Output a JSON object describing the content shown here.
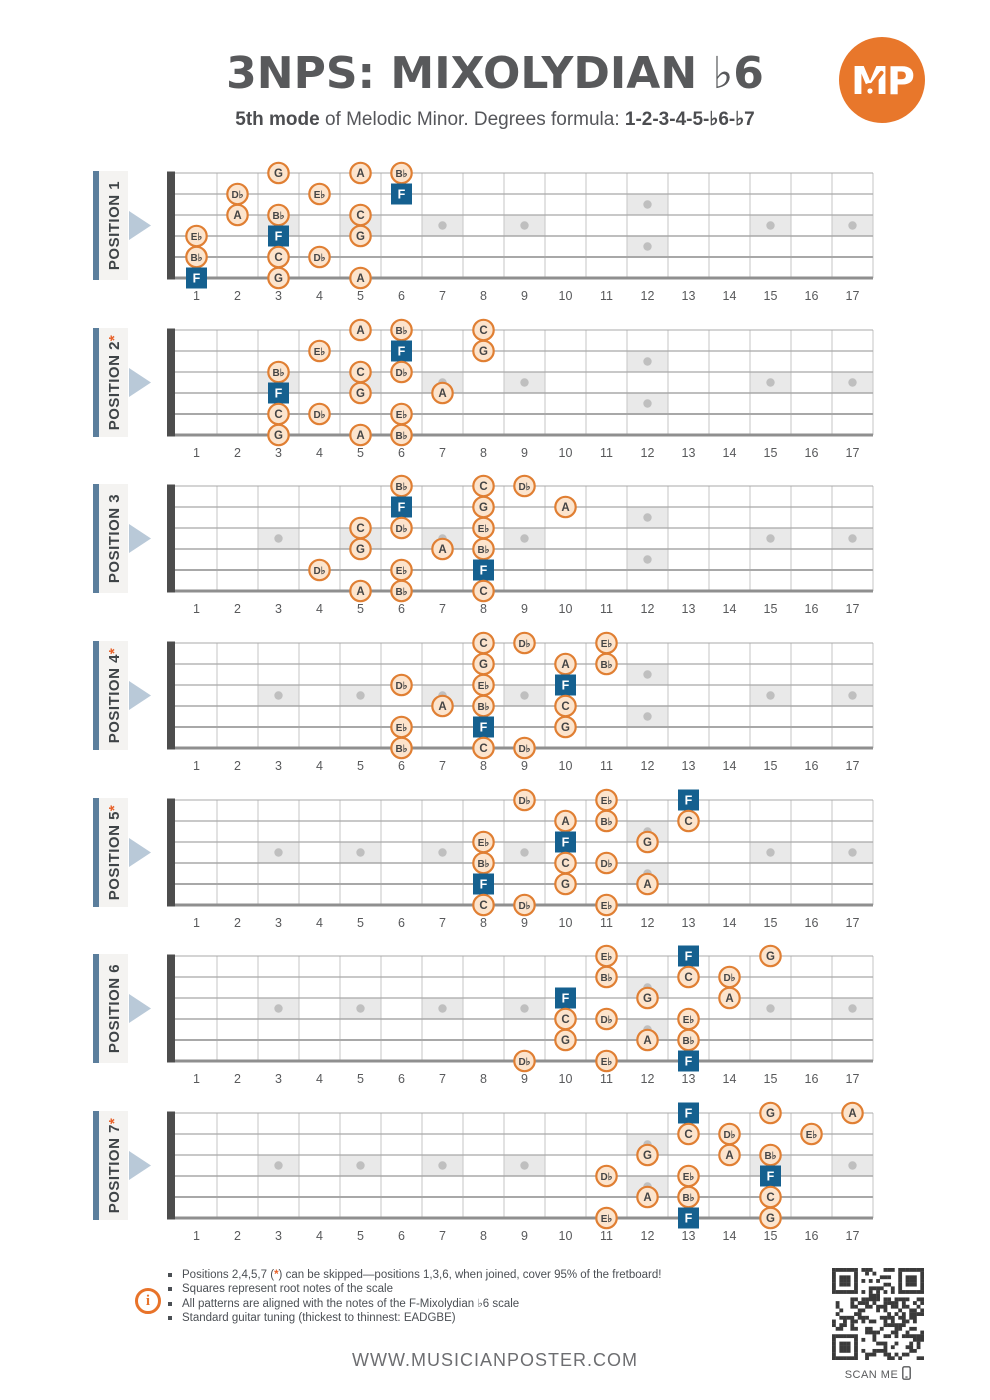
{
  "header": {
    "title": "3NPS: MIXOLYDIAN ♭6",
    "subtitle_bold_lead": "5th mode",
    "subtitle_rest": " of Melodic Minor. Degrees formula: ",
    "subtitle_formula": "1-2-3-4-5-♭6-♭7",
    "logo_text": "MP"
  },
  "colors": {
    "accent_orange": "#E8772B",
    "asterisk": "#E8622A",
    "note_border": "#E07F33",
    "note_bg": "#FCE4CD",
    "note_text": "#454545",
    "root_bg": "#15608F",
    "label_bar": "#5B7E9C",
    "label_bg": "#F4F3F1",
    "label_text": "#3F4447",
    "label_arrow": "#B9C9D8",
    "fret_line": "#C6C6C6",
    "string_line": "#A8A8A8",
    "string_thick": "#8F8F8F",
    "nut": "#4D4D4D",
    "inlay_bg": "#E9E9E9",
    "inlay_dot": "#BFBFBF",
    "fret_number": "#58595B",
    "qr_dark": "#3A3A3A"
  },
  "fretboard": {
    "fret_count": 17,
    "string_count": 6,
    "fret_numbers": [
      "1",
      "2",
      "3",
      "4",
      "5",
      "6",
      "7",
      "8",
      "9",
      "10",
      "11",
      "12",
      "13",
      "14",
      "15",
      "16",
      "17"
    ],
    "inlay_single_frets": [
      3,
      5,
      7,
      9,
      15,
      17
    ],
    "inlay_double_fret": 12
  },
  "positions": [
    {
      "label": "POSITION 1",
      "skippable": false,
      "notes": [
        {
          "s": 1,
          "f": 3,
          "n": "G"
        },
        {
          "s": 1,
          "f": 5,
          "n": "A"
        },
        {
          "s": 1,
          "f": 6,
          "n": "B♭"
        },
        {
          "s": 2,
          "f": 2,
          "n": "D♭"
        },
        {
          "s": 2,
          "f": 4,
          "n": "E♭"
        },
        {
          "s": 2,
          "f": 6,
          "n": "F",
          "root": true
        },
        {
          "s": 3,
          "f": 2,
          "n": "A"
        },
        {
          "s": 3,
          "f": 3,
          "n": "B♭"
        },
        {
          "s": 3,
          "f": 5,
          "n": "C"
        },
        {
          "s": 4,
          "f": 1,
          "n": "E♭"
        },
        {
          "s": 4,
          "f": 3,
          "n": "F",
          "root": true
        },
        {
          "s": 4,
          "f": 5,
          "n": "G"
        },
        {
          "s": 5,
          "f": 1,
          "n": "B♭"
        },
        {
          "s": 5,
          "f": 3,
          "n": "C"
        },
        {
          "s": 5,
          "f": 4,
          "n": "D♭"
        },
        {
          "s": 6,
          "f": 1,
          "n": "F",
          "root": true
        },
        {
          "s": 6,
          "f": 3,
          "n": "G"
        },
        {
          "s": 6,
          "f": 5,
          "n": "A"
        }
      ]
    },
    {
      "label": "POSITION 2",
      "skippable": true,
      "notes": [
        {
          "s": 1,
          "f": 5,
          "n": "A"
        },
        {
          "s": 1,
          "f": 6,
          "n": "B♭"
        },
        {
          "s": 1,
          "f": 8,
          "n": "C"
        },
        {
          "s": 2,
          "f": 4,
          "n": "E♭"
        },
        {
          "s": 2,
          "f": 6,
          "n": "F",
          "root": true
        },
        {
          "s": 2,
          "f": 8,
          "n": "G"
        },
        {
          "s": 3,
          "f": 3,
          "n": "B♭"
        },
        {
          "s": 3,
          "f": 5,
          "n": "C"
        },
        {
          "s": 3,
          "f": 6,
          "n": "D♭"
        },
        {
          "s": 4,
          "f": 3,
          "n": "F",
          "root": true
        },
        {
          "s": 4,
          "f": 5,
          "n": "G"
        },
        {
          "s": 4,
          "f": 7,
          "n": "A"
        },
        {
          "s": 5,
          "f": 3,
          "n": "C"
        },
        {
          "s": 5,
          "f": 4,
          "n": "D♭"
        },
        {
          "s": 5,
          "f": 6,
          "n": "E♭"
        },
        {
          "s": 6,
          "f": 3,
          "n": "G"
        },
        {
          "s": 6,
          "f": 5,
          "n": "A"
        },
        {
          "s": 6,
          "f": 6,
          "n": "B♭"
        }
      ]
    },
    {
      "label": "POSITION 3",
      "skippable": false,
      "notes": [
        {
          "s": 1,
          "f": 6,
          "n": "B♭"
        },
        {
          "s": 1,
          "f": 8,
          "n": "C"
        },
        {
          "s": 1,
          "f": 9,
          "n": "D♭"
        },
        {
          "s": 2,
          "f": 6,
          "n": "F",
          "root": true
        },
        {
          "s": 2,
          "f": 8,
          "n": "G"
        },
        {
          "s": 2,
          "f": 10,
          "n": "A"
        },
        {
          "s": 3,
          "f": 5,
          "n": "C"
        },
        {
          "s": 3,
          "f": 6,
          "n": "D♭"
        },
        {
          "s": 3,
          "f": 8,
          "n": "E♭"
        },
        {
          "s": 4,
          "f": 5,
          "n": "G"
        },
        {
          "s": 4,
          "f": 7,
          "n": "A"
        },
        {
          "s": 4,
          "f": 8,
          "n": "B♭"
        },
        {
          "s": 5,
          "f": 4,
          "n": "D♭"
        },
        {
          "s": 5,
          "f": 6,
          "n": "E♭"
        },
        {
          "s": 5,
          "f": 8,
          "n": "F",
          "root": true
        },
        {
          "s": 6,
          "f": 5,
          "n": "A"
        },
        {
          "s": 6,
          "f": 6,
          "n": "B♭"
        },
        {
          "s": 6,
          "f": 8,
          "n": "C"
        }
      ]
    },
    {
      "label": "POSITION 4",
      "skippable": true,
      "notes": [
        {
          "s": 1,
          "f": 8,
          "n": "C"
        },
        {
          "s": 1,
          "f": 9,
          "n": "D♭"
        },
        {
          "s": 1,
          "f": 11,
          "n": "E♭"
        },
        {
          "s": 2,
          "f": 8,
          "n": "G"
        },
        {
          "s": 2,
          "f": 10,
          "n": "A"
        },
        {
          "s": 2,
          "f": 11,
          "n": "B♭"
        },
        {
          "s": 3,
          "f": 6,
          "n": "D♭"
        },
        {
          "s": 3,
          "f": 8,
          "n": "E♭"
        },
        {
          "s": 3,
          "f": 10,
          "n": "F",
          "root": true
        },
        {
          "s": 4,
          "f": 7,
          "n": "A"
        },
        {
          "s": 4,
          "f": 8,
          "n": "B♭"
        },
        {
          "s": 4,
          "f": 10,
          "n": "C"
        },
        {
          "s": 5,
          "f": 6,
          "n": "E♭"
        },
        {
          "s": 5,
          "f": 8,
          "n": "F",
          "root": true
        },
        {
          "s": 5,
          "f": 10,
          "n": "G"
        },
        {
          "s": 6,
          "f": 6,
          "n": "B♭"
        },
        {
          "s": 6,
          "f": 8,
          "n": "C"
        },
        {
          "s": 6,
          "f": 9,
          "n": "D♭"
        }
      ]
    },
    {
      "label": "POSITION 5",
      "skippable": true,
      "notes": [
        {
          "s": 1,
          "f": 9,
          "n": "D♭"
        },
        {
          "s": 1,
          "f": 11,
          "n": "E♭"
        },
        {
          "s": 1,
          "f": 13,
          "n": "F",
          "root": true
        },
        {
          "s": 2,
          "f": 10,
          "n": "A"
        },
        {
          "s": 2,
          "f": 11,
          "n": "B♭"
        },
        {
          "s": 2,
          "f": 13,
          "n": "C"
        },
        {
          "s": 3,
          "f": 8,
          "n": "E♭"
        },
        {
          "s": 3,
          "f": 10,
          "n": "F",
          "root": true
        },
        {
          "s": 3,
          "f": 12,
          "n": "G"
        },
        {
          "s": 4,
          "f": 8,
          "n": "B♭"
        },
        {
          "s": 4,
          "f": 10,
          "n": "C"
        },
        {
          "s": 4,
          "f": 11,
          "n": "D♭"
        },
        {
          "s": 5,
          "f": 8,
          "n": "F",
          "root": true
        },
        {
          "s": 5,
          "f": 10,
          "n": "G"
        },
        {
          "s": 5,
          "f": 12,
          "n": "A"
        },
        {
          "s": 6,
          "f": 8,
          "n": "C"
        },
        {
          "s": 6,
          "f": 9,
          "n": "D♭"
        },
        {
          "s": 6,
          "f": 11,
          "n": "E♭"
        }
      ]
    },
    {
      "label": "POSITION 6",
      "skippable": false,
      "notes": [
        {
          "s": 1,
          "f": 11,
          "n": "E♭"
        },
        {
          "s": 1,
          "f": 13,
          "n": "F",
          "root": true
        },
        {
          "s": 1,
          "f": 15,
          "n": "G"
        },
        {
          "s": 2,
          "f": 11,
          "n": "B♭"
        },
        {
          "s": 2,
          "f": 13,
          "n": "C"
        },
        {
          "s": 2,
          "f": 14,
          "n": "D♭"
        },
        {
          "s": 3,
          "f": 10,
          "n": "F",
          "root": true
        },
        {
          "s": 3,
          "f": 12,
          "n": "G"
        },
        {
          "s": 3,
          "f": 14,
          "n": "A"
        },
        {
          "s": 4,
          "f": 10,
          "n": "C"
        },
        {
          "s": 4,
          "f": 11,
          "n": "D♭"
        },
        {
          "s": 4,
          "f": 13,
          "n": "E♭"
        },
        {
          "s": 5,
          "f": 10,
          "n": "G"
        },
        {
          "s": 5,
          "f": 12,
          "n": "A"
        },
        {
          "s": 5,
          "f": 13,
          "n": "B♭"
        },
        {
          "s": 6,
          "f": 9,
          "n": "D♭"
        },
        {
          "s": 6,
          "f": 11,
          "n": "E♭"
        },
        {
          "s": 6,
          "f": 13,
          "n": "F",
          "root": true
        }
      ]
    },
    {
      "label": "POSITION 7",
      "skippable": true,
      "notes": [
        {
          "s": 1,
          "f": 13,
          "n": "F",
          "root": true
        },
        {
          "s": 1,
          "f": 15,
          "n": "G"
        },
        {
          "s": 1,
          "f": 17,
          "n": "A"
        },
        {
          "s": 2,
          "f": 13,
          "n": "C"
        },
        {
          "s": 2,
          "f": 14,
          "n": "D♭"
        },
        {
          "s": 2,
          "f": 16,
          "n": "E♭"
        },
        {
          "s": 3,
          "f": 12,
          "n": "G"
        },
        {
          "s": 3,
          "f": 14,
          "n": "A"
        },
        {
          "s": 3,
          "f": 15,
          "n": "B♭"
        },
        {
          "s": 4,
          "f": 11,
          "n": "D♭"
        },
        {
          "s": 4,
          "f": 13,
          "n": "E♭"
        },
        {
          "s": 4,
          "f": 15,
          "n": "F",
          "root": true
        },
        {
          "s": 5,
          "f": 12,
          "n": "A"
        },
        {
          "s": 5,
          "f": 13,
          "n": "B♭"
        },
        {
          "s": 5,
          "f": 15,
          "n": "C"
        },
        {
          "s": 6,
          "f": 11,
          "n": "E♭"
        },
        {
          "s": 6,
          "f": 13,
          "n": "F",
          "root": true
        },
        {
          "s": 6,
          "f": 15,
          "n": "G"
        }
      ]
    }
  ],
  "footer": {
    "bullets": [
      {
        "segments": [
          {
            "text": "Positions 2,4,5,7 ("
          },
          {
            "text": "*",
            "orange": true
          },
          {
            "text": ") can be skipped—positions 1,3,6, when joined, cover 95% of the fretboard!"
          }
        ]
      },
      {
        "segments": [
          {
            "text": "Squares represent root notes of the scale"
          }
        ]
      },
      {
        "segments": [
          {
            "text": "All patterns are aligned with the notes of the F-Mixolydian ♭6 scale"
          }
        ]
      },
      {
        "segments": [
          {
            "text": "Standard guitar tuning (thickest to thinnest: EADGBE)"
          }
        ]
      }
    ],
    "info_icon_glyph": "i",
    "scan_me": "SCAN ME",
    "website": "WWW.MUSICIANPOSTER.COM"
  }
}
